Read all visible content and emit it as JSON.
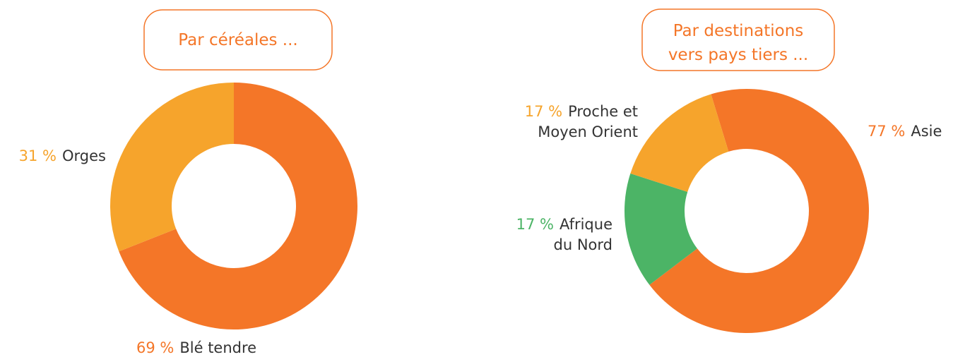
{
  "chart_data": [
    {
      "type": "donut",
      "title": "Par céréales ...",
      "categories": [
        "Blé tendre",
        "Orges"
      ],
      "values": [
        69,
        31
      ],
      "value_labels": [
        "69 %",
        "31 %"
      ],
      "colors": [
        "#f47628",
        "#f6a42c"
      ]
    },
    {
      "type": "donut",
      "title": "Par destinations\nvers pays tiers ...",
      "categories": [
        "Asie",
        "Afrique\ndu Nord",
        "Proche et\nMoyen Orient"
      ],
      "values": [
        77,
        17,
        17
      ],
      "value_labels": [
        "77 %",
        "17 %",
        "17 %"
      ],
      "colors": [
        "#f47628",
        "#4cb466",
        "#f6a42c"
      ]
    }
  ]
}
